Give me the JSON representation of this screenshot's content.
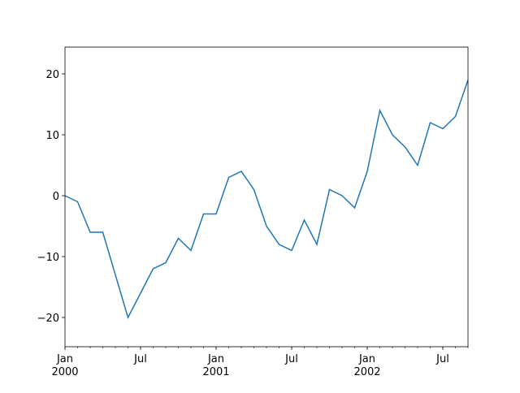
{
  "chart_data": {
    "type": "line",
    "x": [
      "2000-01",
      "2000-02",
      "2000-03",
      "2000-04",
      "2000-05",
      "2000-06",
      "2000-07",
      "2000-08",
      "2000-09",
      "2000-10",
      "2000-11",
      "2000-12",
      "2001-01",
      "2001-02",
      "2001-03",
      "2001-04",
      "2001-05",
      "2001-06",
      "2001-07",
      "2001-08",
      "2001-09",
      "2001-10",
      "2001-11",
      "2001-12",
      "2002-01",
      "2002-02",
      "2002-03",
      "2002-04",
      "2002-05",
      "2002-06",
      "2002-07",
      "2002-08",
      "2002-09"
    ],
    "series": [
      {
        "color": "#1f77b4",
        "values": [
          0,
          -1,
          -6,
          -6,
          -13,
          -20,
          -16,
          -12,
          -11,
          -7,
          -9,
          -3,
          -3,
          3,
          4,
          1,
          -5,
          -8,
          -9,
          -4,
          -8,
          1,
          0,
          -2,
          4,
          14,
          10,
          8,
          5,
          12,
          11,
          13,
          19
        ]
      }
    ],
    "xlim": [
      "2000-01",
      "2002-09"
    ],
    "xticks": [
      {
        "value": "2000-01",
        "label": "Jan\n2000"
      },
      {
        "value": "2000-07",
        "label": "Jul"
      },
      {
        "value": "2001-01",
        "label": "Jan\n2001"
      },
      {
        "value": "2001-07",
        "label": "Jul"
      },
      {
        "value": "2002-01",
        "label": "Jan\n2002"
      },
      {
        "value": "2002-07",
        "label": "Jul"
      }
    ],
    "ylim": [
      -24.8,
      24.4
    ],
    "yticks": [
      {
        "value": -20,
        "label": "−20"
      },
      {
        "value": -10,
        "label": "−10"
      },
      0,
      10,
      20
    ]
  }
}
